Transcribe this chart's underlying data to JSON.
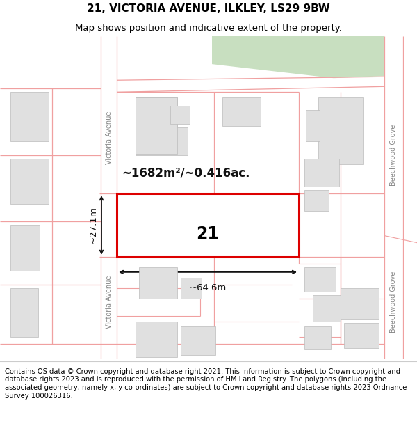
{
  "title": "21, VICTORIA AVENUE, ILKLEY, LS29 9BW",
  "subtitle": "Map shows position and indicative extent of the property.",
  "footer": "Contains OS data © Crown copyright and database right 2021. This information is subject to Crown copyright and database rights 2023 and is reproduced with the permission of HM Land Registry. The polygons (including the associated geometry, namely x, y co-ordinates) are subject to Crown copyright and database rights 2023 Ordnance Survey 100026316.",
  "bg_color": "#ffffff",
  "building_fill": "#e0e0e0",
  "building_edge": "#bbbbbb",
  "plot_outline_color": "#dd0000",
  "plot_fill": "#ffffff",
  "road_line_color": "#f0a0a0",
  "green_area_color": "#c8dfc0",
  "street_label_color": "#888888",
  "annotation_color": "#111111",
  "dim_line_color": "#111111",
  "title_fontsize": 11,
  "subtitle_fontsize": 9.5,
  "footer_fontsize": 7.2,
  "area_text": "~1682m²/~0.416ac.",
  "width_dim_text": "~64.6m",
  "height_dim_text": "~27.1m",
  "plot_label": "21"
}
